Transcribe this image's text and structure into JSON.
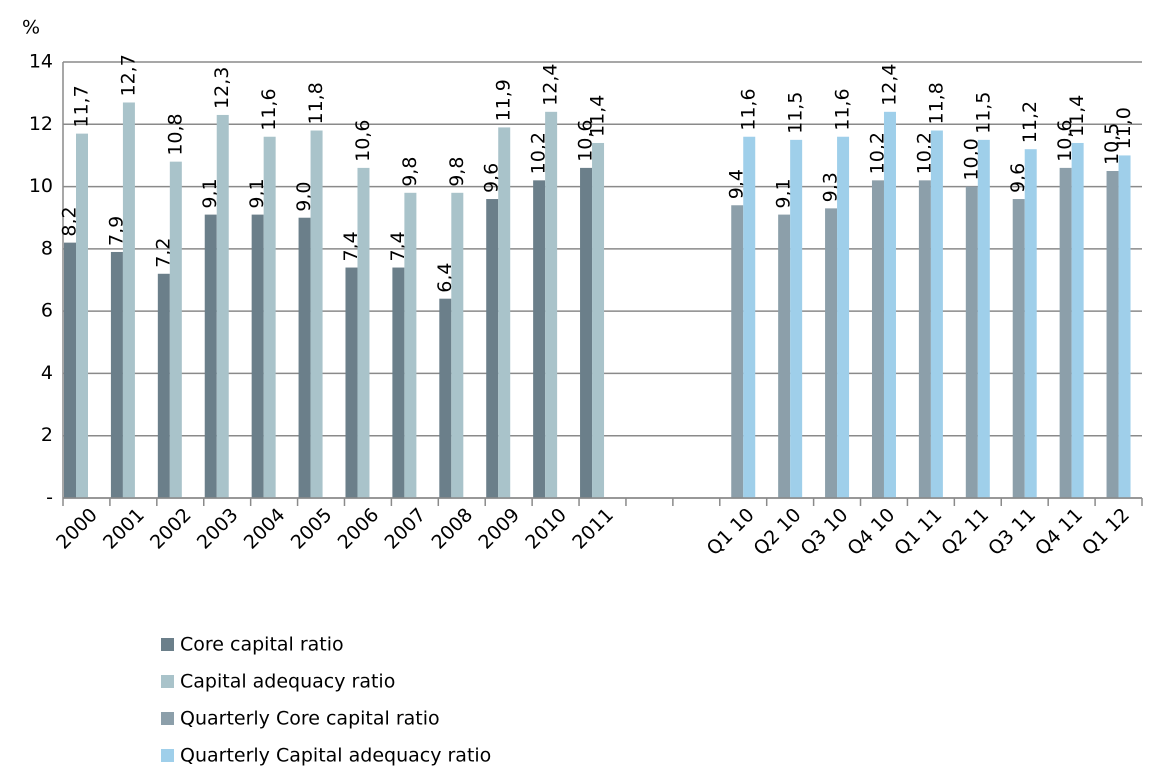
{
  "chart_data": {
    "type": "bar",
    "ylabel": "%",
    "categories": [
      "2000",
      "2001",
      "2002",
      "2003",
      "2004",
      "2005",
      "2006",
      "2007",
      "2008",
      "2009",
      "2010",
      "2011",
      null,
      null,
      "Q1 10",
      "Q2 10",
      "Q3 10",
      "Q4 10",
      "Q1 11",
      "Q2 11",
      "Q3 11",
      "Q4 11",
      "Q1 12"
    ],
    "series": [
      {
        "name": "Core capital ratio",
        "color": "#6b7f8a",
        "values": [
          8.2,
          7.9,
          7.2,
          9.1,
          9.1,
          9.0,
          7.4,
          7.4,
          6.4,
          9.6,
          10.2,
          10.6,
          null,
          null,
          null,
          null,
          null,
          null,
          null,
          null,
          null,
          null,
          null
        ],
        "value_labels": [
          "8,2",
          "7,9",
          "7,2",
          "9,1",
          "9,1",
          "9,0",
          "7,4",
          "7,4",
          "6,4",
          "9,6",
          "10,2",
          "10,6",
          null,
          null,
          null,
          null,
          null,
          null,
          null,
          null,
          null,
          null,
          null
        ]
      },
      {
        "name": "Capital adequacy ratio",
        "color": "#a9c3ca",
        "values": [
          11.7,
          12.7,
          10.8,
          12.3,
          11.6,
          11.8,
          10.6,
          9.8,
          9.8,
          11.9,
          12.4,
          11.4,
          null,
          null,
          null,
          null,
          null,
          null,
          null,
          null,
          null,
          null,
          null
        ],
        "value_labels": [
          "11,7",
          "12,7",
          "10,8",
          "12,3",
          "11,6",
          "11,8",
          "10,6",
          "9,8",
          "9,8",
          "11,9",
          "12,4",
          "11,4",
          null,
          null,
          null,
          null,
          null,
          null,
          null,
          null,
          null,
          null,
          null
        ]
      },
      {
        "name": "Quarterly Core capital ratio",
        "color": "#8c9faa",
        "values": [
          null,
          null,
          null,
          null,
          null,
          null,
          null,
          null,
          null,
          null,
          null,
          null,
          null,
          null,
          9.4,
          9.1,
          9.3,
          10.2,
          10.2,
          10.0,
          9.6,
          10.6,
          10.5
        ],
        "value_labels": [
          null,
          null,
          null,
          null,
          null,
          null,
          null,
          null,
          null,
          null,
          null,
          null,
          null,
          null,
          "9,4",
          "9,1",
          "9,3",
          "10,2",
          "10,2",
          "10,0",
          "9,6",
          "10,6",
          "10,5"
        ]
      },
      {
        "name": "Quarterly Capital adequacy ratio",
        "color": "#9fcfea",
        "values": [
          null,
          null,
          null,
          null,
          null,
          null,
          null,
          null,
          null,
          null,
          null,
          null,
          null,
          null,
          11.6,
          11.5,
          11.6,
          12.4,
          11.8,
          11.5,
          11.2,
          11.4,
          11.0
        ],
        "value_labels": [
          null,
          null,
          null,
          null,
          null,
          null,
          null,
          null,
          null,
          null,
          null,
          null,
          null,
          null,
          "11,6",
          "11,5",
          "11,6",
          "12,4",
          "11,8",
          "11,5",
          "11,2",
          "11,4",
          "11,0"
        ]
      }
    ],
    "ylim": [
      0,
      14
    ],
    "yticks": [
      {
        "value": 0,
        "label": "-"
      },
      2,
      4,
      6,
      8,
      10,
      12,
      14
    ],
    "grid": true,
    "legend": "bottom-left"
  }
}
